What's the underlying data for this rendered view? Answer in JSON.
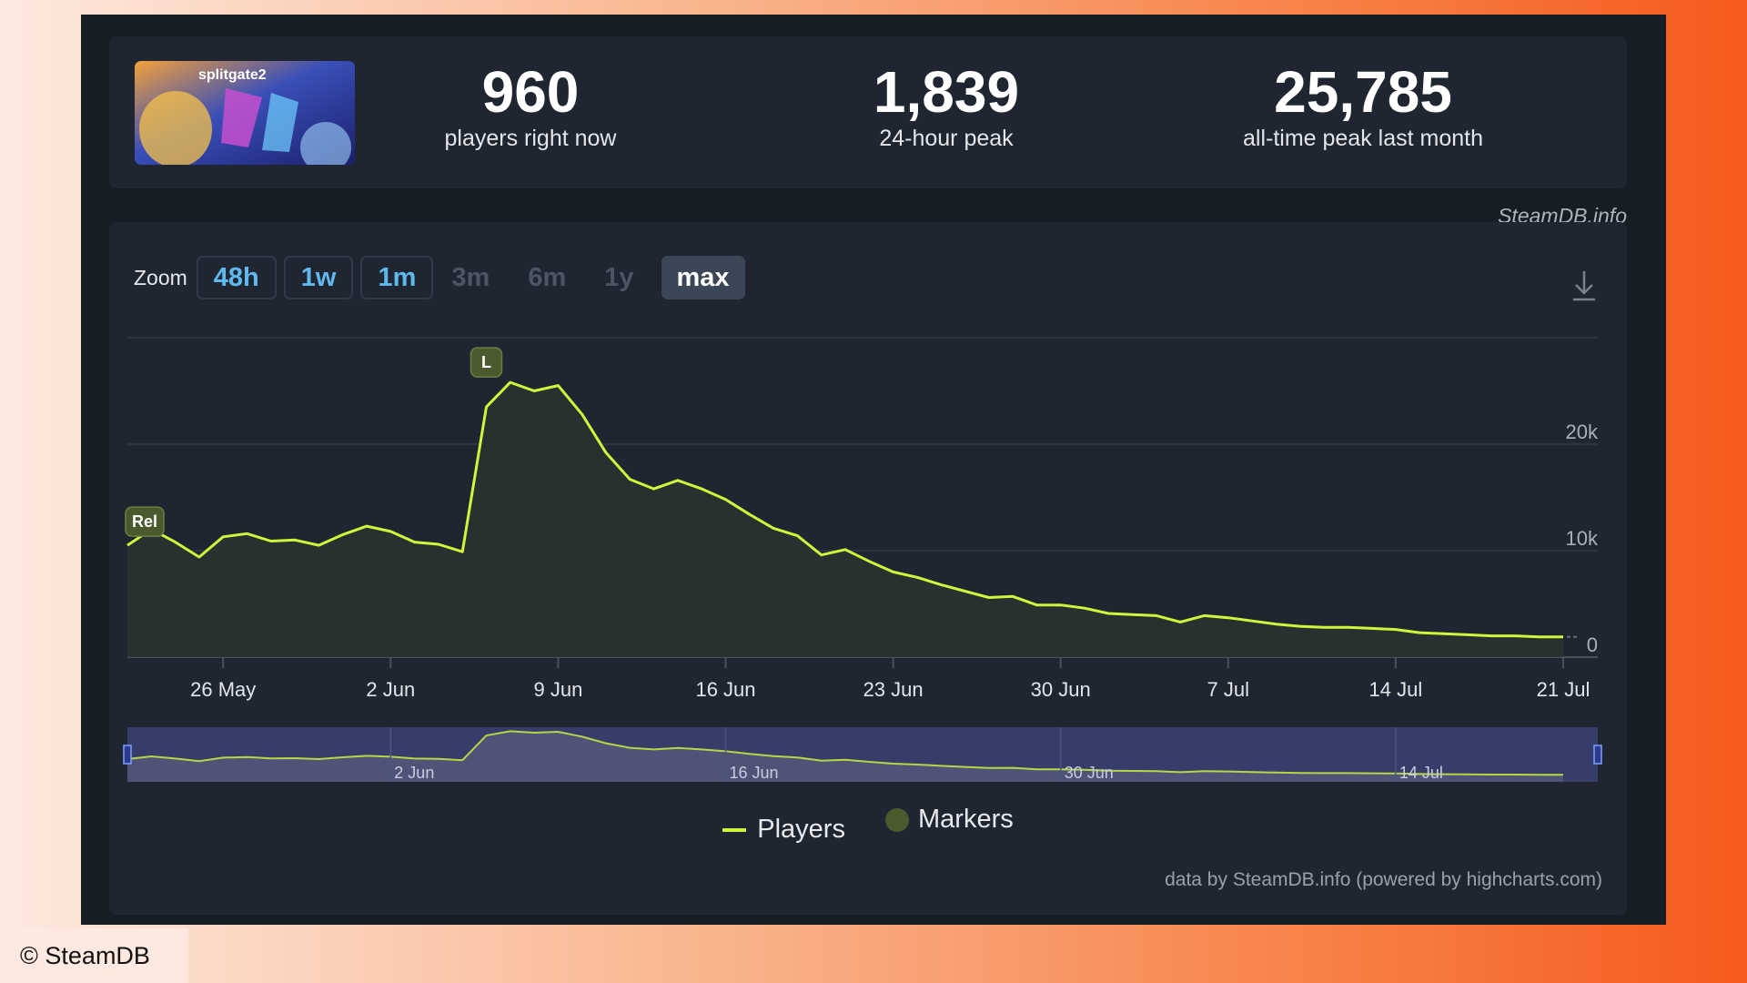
{
  "stats": [
    {
      "value": "960",
      "label": "players right now"
    },
    {
      "value": "1,839",
      "label": "24-hour peak"
    },
    {
      "value": "25,785",
      "label": "all-time peak last month"
    }
  ],
  "game_logo_text": "splitgate2",
  "source_link": "SteamDB.info",
  "zoom": {
    "label": "Zoom",
    "options": [
      {
        "label": "48h",
        "state": "enabled"
      },
      {
        "label": "1w",
        "state": "enabled"
      },
      {
        "label": "1m",
        "state": "enabled"
      },
      {
        "label": "3m",
        "state": "disabled"
      },
      {
        "label": "6m",
        "state": "disabled"
      },
      {
        "label": "1y",
        "state": "disabled"
      },
      {
        "label": "max",
        "state": "selected"
      }
    ]
  },
  "chart_data": {
    "type": "area",
    "x_ticks": [
      "26 May",
      "2 Jun",
      "9 Jun",
      "16 Jun",
      "23 Jun",
      "30 Jun",
      "7 Jul",
      "14 Jul",
      "21 Jul"
    ],
    "y_ticks": [
      "0",
      "10k",
      "20k"
    ],
    "ylim": [
      0,
      30000
    ],
    "y_axis_side": "right",
    "grid": true,
    "navigator_ticks": [
      "2 Jun",
      "16 Jun",
      "30 Jun",
      "14 Jul"
    ],
    "series": [
      {
        "name": "Players",
        "color": "#d2f53c",
        "points": [
          [
            "2025-05-22",
            10500
          ],
          [
            "2025-05-23",
            12000
          ],
          [
            "2025-05-24",
            10800
          ],
          [
            "2025-05-25",
            9400
          ],
          [
            "2025-05-26",
            11300
          ],
          [
            "2025-05-27",
            11600
          ],
          [
            "2025-05-28",
            10900
          ],
          [
            "2025-05-29",
            11000
          ],
          [
            "2025-05-30",
            10500
          ],
          [
            "2025-05-31",
            11500
          ],
          [
            "2025-06-01",
            12300
          ],
          [
            "2025-06-02",
            11800
          ],
          [
            "2025-06-03",
            10800
          ],
          [
            "2025-06-04",
            10600
          ],
          [
            "2025-06-05",
            9900
          ],
          [
            "2025-06-06",
            23500
          ],
          [
            "2025-06-07",
            25800
          ],
          [
            "2025-06-08",
            25000
          ],
          [
            "2025-06-09",
            25500
          ],
          [
            "2025-06-10",
            22800
          ],
          [
            "2025-06-11",
            19200
          ],
          [
            "2025-06-12",
            16700
          ],
          [
            "2025-06-13",
            15800
          ],
          [
            "2025-06-14",
            16600
          ],
          [
            "2025-06-15",
            15800
          ],
          [
            "2025-06-16",
            14800
          ],
          [
            "2025-06-17",
            13400
          ],
          [
            "2025-06-18",
            12100
          ],
          [
            "2025-06-19",
            11400
          ],
          [
            "2025-06-20",
            9600
          ],
          [
            "2025-06-21",
            10100
          ],
          [
            "2025-06-22",
            9000
          ],
          [
            "2025-06-23",
            8000
          ],
          [
            "2025-06-24",
            7500
          ],
          [
            "2025-06-25",
            6800
          ],
          [
            "2025-06-26",
            6200
          ],
          [
            "2025-06-27",
            5600
          ],
          [
            "2025-06-28",
            5700
          ],
          [
            "2025-06-29",
            4900
          ],
          [
            "2025-06-30",
            4900
          ],
          [
            "2025-07-01",
            4600
          ],
          [
            "2025-07-02",
            4100
          ],
          [
            "2025-07-03",
            4000
          ],
          [
            "2025-07-04",
            3900
          ],
          [
            "2025-07-05",
            3300
          ],
          [
            "2025-07-06",
            3900
          ],
          [
            "2025-07-07",
            3700
          ],
          [
            "2025-07-08",
            3400
          ],
          [
            "2025-07-09",
            3100
          ],
          [
            "2025-07-10",
            2900
          ],
          [
            "2025-07-11",
            2800
          ],
          [
            "2025-07-12",
            2800
          ],
          [
            "2025-07-13",
            2700
          ],
          [
            "2025-07-14",
            2600
          ],
          [
            "2025-07-15",
            2300
          ],
          [
            "2025-07-16",
            2200
          ],
          [
            "2025-07-17",
            2100
          ],
          [
            "2025-07-18",
            2000
          ],
          [
            "2025-07-19",
            2000
          ],
          [
            "2025-07-20",
            1900
          ],
          [
            "2025-07-21",
            1900
          ]
        ]
      }
    ],
    "markers": [
      {
        "label": "Rel",
        "date": "2025-05-22"
      },
      {
        "label": "L",
        "date": "2025-06-06"
      }
    ],
    "legend": [
      "Players",
      "Markers"
    ],
    "legend_position": "bottom-center",
    "credits": "data by SteamDB.info (powered by highcharts.com)"
  },
  "copyright": "© SteamDB"
}
